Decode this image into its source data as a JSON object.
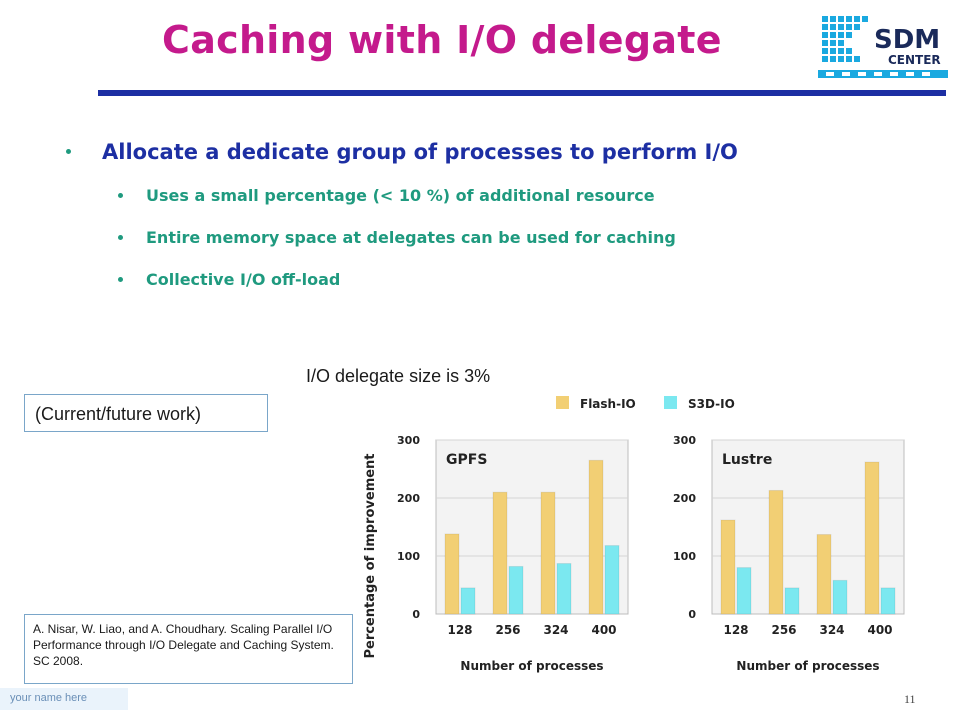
{
  "slide": {
    "title": "Caching with I/O delegate",
    "logo_text": "SDM",
    "logo_subtext": "CENTER",
    "bullets": {
      "main": "Allocate a dedicate group of processes to perform I/O",
      "sub": [
        "Uses a small percentage (< 10 %) of additional resource",
        "Entire memory space at delegates can be used for caching",
        "Collective I/O off-load"
      ]
    },
    "chart_caption": "I/O delegate size is 3%",
    "note": "(Current/future work)",
    "reference": "A. Nisar, W. Liao, and A. Choudhary. Scaling Parallel I/O Performance through I/O Delegate and Caching System. SC 2008.",
    "footer_name": "your name here",
    "slide_number": "11"
  },
  "chart_data": [
    {
      "type": "bar",
      "title": "GPFS",
      "categories": [
        "128",
        "256",
        "324",
        "400"
      ],
      "series": [
        {
          "name": "Flash-IO",
          "values": [
            138,
            210,
            210,
            265
          ]
        },
        {
          "name": "S3D-IO",
          "values": [
            45,
            82,
            87,
            118
          ]
        }
      ],
      "xlabel": "Number of processes",
      "ylabel": "Percentage of improvement",
      "ylim": [
        0,
        300
      ],
      "yticks": [
        "0",
        "100",
        "200",
        "300"
      ],
      "legend": "top"
    },
    {
      "type": "bar",
      "title": "Lustre",
      "categories": [
        "128",
        "256",
        "324",
        "400"
      ],
      "series": [
        {
          "name": "Flash-IO",
          "values": [
            162,
            213,
            137,
            262
          ]
        },
        {
          "name": "S3D-IO",
          "values": [
            80,
            45,
            58,
            45
          ]
        }
      ],
      "xlabel": "Number of processes",
      "ylabel": "",
      "ylim": [
        0,
        300
      ],
      "yticks": [
        "0",
        "100",
        "200",
        "300"
      ],
      "legend": "top"
    }
  ],
  "colors": {
    "flash_io": "#f2cf74",
    "s3d_io": "#7be8f0",
    "title": "#c41a8c",
    "bullet_main": "#1d2fa3",
    "bullet_sub": "#1f9a7f"
  }
}
